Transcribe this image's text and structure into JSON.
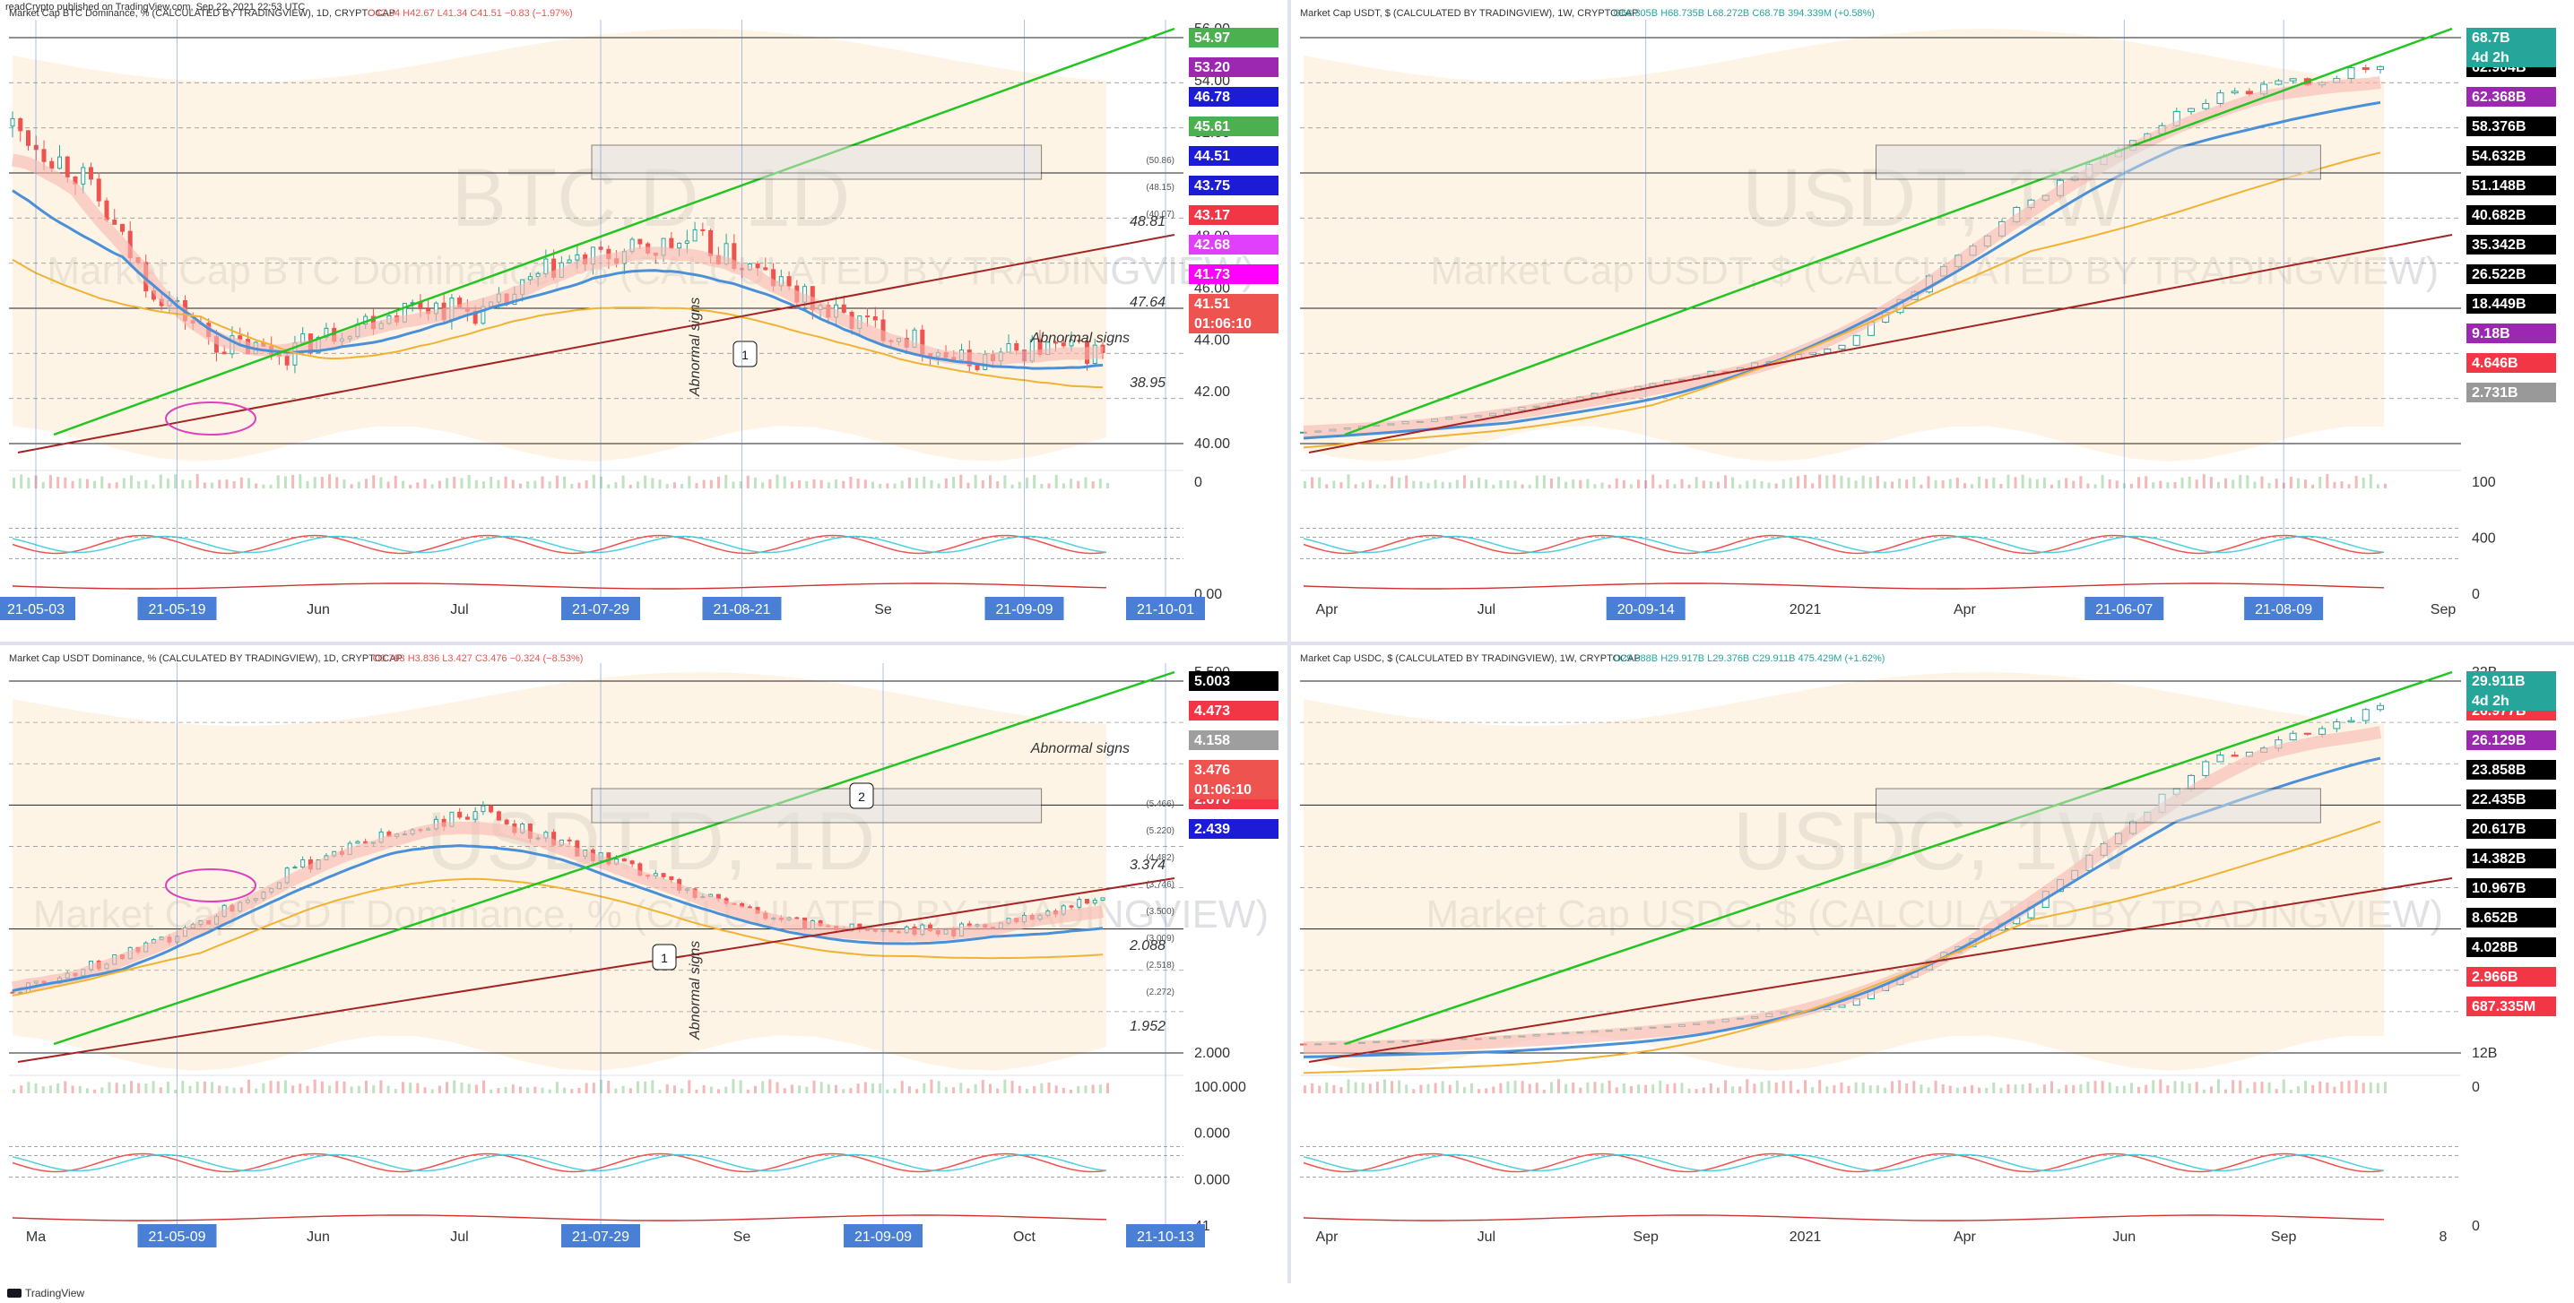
{
  "header": {
    "published": "readCrypto published on TradingView.com, Sep 22, 2021 22:53 UTC"
  },
  "footer": {
    "brand": "TradingView"
  },
  "annotations": {
    "abnormal": "Abnormal signs"
  },
  "panels": [
    {
      "id": "btcd",
      "title": "Market Cap BTC Dominance, % (CALCULATED BY TRADINGVIEW), 1D, CRYPTOCAP",
      "ohlc": "O42.34 H42.67 L41.34 C41.51 −0.83 (−1.97%)",
      "watermark": "BTC.D, 1D",
      "watermark_sub": "Market Cap BTC Dominance, % (CALCULATED BY TRADINGVIEW)",
      "ticks": [
        "56.00",
        "54.00",
        "52.00",
        "50.00",
        "48.00",
        "46.00",
        "44.00",
        "42.00",
        "40.00"
      ],
      "badges": [
        {
          "text": "54.97",
          "color": "#4caf50"
        },
        {
          "text": "53.20",
          "color": "#9c27b0"
        },
        {
          "text": "46.78",
          "color": "#1c1cd6"
        },
        {
          "text": "45.61",
          "color": "#4caf50"
        },
        {
          "text": "44.51",
          "color": "#1c1cd6"
        },
        {
          "text": "43.75",
          "color": "#1c1cd6"
        },
        {
          "text": "43.17",
          "color": "#f23645"
        },
        {
          "text": "42.68",
          "color": "#e040fb"
        },
        {
          "text": "41.73",
          "color": "#ff00ff"
        },
        {
          "text": "41.51",
          "color": "#ef5350"
        }
      ],
      "countdown": "01:06:10",
      "levels": [
        "48.81",
        "47.64",
        "38.95"
      ],
      "small_levels": [
        "(50.86)",
        "(48.15)",
        "(40.07)"
      ],
      "osc_ticks": [
        "0",
        "0.00"
      ],
      "xaxis": [
        {
          "text": "21-05-03",
          "hl": true
        },
        {
          "text": "21-05-19",
          "hl": true
        },
        {
          "text": "Jun",
          "hl": false
        },
        {
          "text": "Jul",
          "hl": false
        },
        {
          "text": "21-07-29",
          "hl": true
        },
        {
          "text": "21-08-21",
          "hl": true
        },
        {
          "text": "Se",
          "hl": false
        },
        {
          "text": "21-09-09",
          "hl": true
        },
        {
          "text": "21-10-01",
          "hl": true
        }
      ],
      "box_labels": [
        "1"
      ]
    },
    {
      "id": "usdt",
      "title": "Market Cap USDT, $ (CALCULATED BY TRADINGVIEW), 1W, CRYPTOCAP",
      "ohlc": "O68.305B H68.735B L68.272B C68.7B 394.339M (+0.58%)",
      "watermark": "USDT, 1W",
      "watermark_sub": "Market Cap USDT, $ (CALCULATED BY TRADINGVIEW)",
      "badges": [
        {
          "text": "68.7B",
          "color": "#26a69a"
        },
        {
          "text": "62.904B",
          "color": "#000000"
        },
        {
          "text": "62.368B",
          "color": "#9c27b0"
        },
        {
          "text": "58.376B",
          "color": "#000000"
        },
        {
          "text": "54.632B",
          "color": "#000000"
        },
        {
          "text": "51.148B",
          "color": "#000000"
        },
        {
          "text": "40.682B",
          "color": "#000000"
        },
        {
          "text": "35.342B",
          "color": "#000000"
        },
        {
          "text": "26.522B",
          "color": "#000000"
        },
        {
          "text": "18.449B",
          "color": "#000000"
        },
        {
          "text": "9.18B",
          "color": "#9c27b0"
        },
        {
          "text": "4.646B",
          "color": "#f23645"
        },
        {
          "text": "2.731B",
          "color": "#999999"
        }
      ],
      "countdown": "4d 2h",
      "osc_ticks": [
        "100",
        "400",
        "0"
      ],
      "xaxis": [
        {
          "text": "Apr",
          "hl": false
        },
        {
          "text": "Jul",
          "hl": false
        },
        {
          "text": "20-09-14",
          "hl": true
        },
        {
          "text": "2021",
          "hl": false
        },
        {
          "text": "Apr",
          "hl": false
        },
        {
          "text": "21-06-07",
          "hl": true
        },
        {
          "text": "21-08-09",
          "hl": true
        },
        {
          "text": "Sep",
          "hl": false
        }
      ]
    },
    {
      "id": "usdtd",
      "title": "Market Cap USDT Dominance, % (CALCULATED BY TRADINGVIEW), 1D, CRYPTOCAP",
      "ohlc": "O3.793 H3.836 L3.427 C3.476 −0.324 (−8.53%)",
      "watermark": "USDT.D, 1D",
      "watermark_sub": "Market Cap USDT Dominance, % (CALCULATED BY TRADINGVIEW)",
      "ticks": [
        "5.500",
        "2.000"
      ],
      "badges": [
        {
          "text": "5.003",
          "color": "#000000"
        },
        {
          "text": "4.473",
          "color": "#f23645"
        },
        {
          "text": "4.158",
          "color": "#9e9e9e"
        },
        {
          "text": "3.476",
          "color": "#ef5350"
        },
        {
          "text": "2.670",
          "color": "#f23645"
        },
        {
          "text": "2.439",
          "color": "#1c1cd6"
        }
      ],
      "countdown": "01:06:10",
      "levels": [
        "3.374",
        "2.088",
        "1.952"
      ],
      "small_levels": [
        "(5.466)",
        "(5.220)",
        "(4.482)",
        "(3.746)",
        "(3.500)",
        "(3.009)",
        "(2.518)",
        "(2.272)"
      ],
      "osc_ticks": [
        "100.000",
        "0.000",
        "0.000",
        "41"
      ],
      "xaxis": [
        {
          "text": "Ma",
          "hl": false
        },
        {
          "text": "21-05-09",
          "hl": true
        },
        {
          "text": "Jun",
          "hl": false
        },
        {
          "text": "Jul",
          "hl": false
        },
        {
          "text": "21-07-29",
          "hl": true
        },
        {
          "text": "Se",
          "hl": false
        },
        {
          "text": "21-09-09",
          "hl": true
        },
        {
          "text": "Oct",
          "hl": false
        },
        {
          "text": "21-10-13",
          "hl": true
        }
      ],
      "box_labels": [
        "2",
        "1"
      ]
    },
    {
      "id": "usdc",
      "title": "Market Cap USDC, $ (CALCULATED BY TRADINGVIEW), 1W, CRYPTOCAP",
      "ohlc": "O29.388B H29.917B L29.376B C29.911B 475.429M (+1.62%)",
      "watermark": "USDC, 1W",
      "watermark_sub": "Market Cap USDC, $ (CALCULATED BY TRADINGVIEW)",
      "ticks": [
        "32B",
        "16B",
        "12B"
      ],
      "badges": [
        {
          "text": "29.911B",
          "color": "#26a69a"
        },
        {
          "text": "26.977B",
          "color": "#f23645"
        },
        {
          "text": "26.129B",
          "color": "#9c27b0"
        },
        {
          "text": "23.858B",
          "color": "#000000"
        },
        {
          "text": "22.435B",
          "color": "#000000"
        },
        {
          "text": "20.617B",
          "color": "#000000"
        },
        {
          "text": "14.382B",
          "color": "#000000"
        },
        {
          "text": "10.967B",
          "color": "#000000"
        },
        {
          "text": "8.652B",
          "color": "#000000"
        },
        {
          "text": "4.028B",
          "color": "#000000"
        },
        {
          "text": "2.966B",
          "color": "#f23645"
        },
        {
          "text": "687.335M",
          "color": "#f23645"
        }
      ],
      "countdown": "4d 2h",
      "osc_ticks": [
        "0",
        "0"
      ],
      "xaxis": [
        {
          "text": "Apr",
          "hl": false
        },
        {
          "text": "Jul",
          "hl": false
        },
        {
          "text": "Sep",
          "hl": false
        },
        {
          "text": "2021",
          "hl": false
        },
        {
          "text": "Apr",
          "hl": false
        },
        {
          "text": "Jun",
          "hl": false
        },
        {
          "text": "Sep",
          "hl": false
        },
        {
          "text": "8",
          "hl": false
        }
      ]
    }
  ],
  "chart_data": [
    {
      "type": "candlestick",
      "title": "Market Cap BTC Dominance, % (CALCULATED BY TRADINGVIEW), 1D, CRYPTOCAP",
      "x": [
        "Apr-end",
        "May",
        "May",
        "May",
        "May-mid",
        "May-end",
        "Jun",
        "Jun-mid",
        "Jul",
        "Jul-mid",
        "Jul-end",
        "Aug",
        "Aug-mid",
        "Aug-end",
        "Sep",
        "Sep-mid",
        "Sep-22"
      ],
      "close": [
        53.0,
        50.5,
        45.0,
        42.0,
        41.5,
        43.0,
        44.0,
        43.5,
        46.0,
        46.5,
        47.2,
        45.5,
        43.5,
        42.5,
        41.0,
        41.8,
        41.51
      ],
      "ylim": [
        37.5,
        56.0
      ],
      "last": 41.51
    },
    {
      "type": "candlestick",
      "title": "Market Cap USDT, $ (CALCULATED BY TRADINGVIEW), 1W, CRYPTOCAP",
      "x": [
        "Apr 2020",
        "Jul 2020",
        "Sep 2020",
        "2021",
        "Apr 2021",
        "Jun 2021",
        "Sep 2021"
      ],
      "close": [
        6.5,
        9.5,
        15.0,
        21.0,
        45.0,
        62.9,
        68.7
      ],
      "unit": "B",
      "last": "68.7B"
    },
    {
      "type": "candlestick",
      "title": "Market Cap USDT Dominance, % (CALCULATED BY TRADINGVIEW), 1D, CRYPTOCAP",
      "x": [
        "May",
        "May-mid",
        "Jun",
        "Jul",
        "Jul-end",
        "Aug",
        "Sep",
        "Sep-22"
      ],
      "close": [
        2.4,
        3.0,
        4.0,
        4.5,
        3.8,
        3.2,
        3.1,
        3.476
      ],
      "ylim": [
        1.8,
        5.7
      ],
      "last": 3.476
    },
    {
      "type": "candlestick",
      "title": "Market Cap USDC, $ (CALCULATED BY TRADINGVIEW), 1W, CRYPTOCAP",
      "x": [
        "Apr 2020",
        "Jul 2020",
        "Sep 2020",
        "2021",
        "Apr 2021",
        "Jun 2021",
        "Sep 2021"
      ],
      "close": [
        0.7,
        1.2,
        2.2,
        4.0,
        12.0,
        25.0,
        29.911
      ],
      "unit": "B",
      "last": "29.911B"
    }
  ]
}
